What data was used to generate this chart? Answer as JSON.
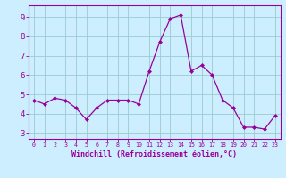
{
  "x": [
    0,
    1,
    2,
    3,
    4,
    5,
    6,
    7,
    8,
    9,
    10,
    11,
    12,
    13,
    14,
    15,
    16,
    17,
    18,
    19,
    20,
    21,
    22,
    23
  ],
  "y": [
    4.7,
    4.5,
    4.8,
    4.7,
    4.3,
    3.7,
    4.3,
    4.7,
    4.7,
    4.7,
    4.5,
    6.2,
    7.7,
    8.9,
    9.1,
    6.2,
    6.5,
    6.0,
    4.7,
    4.3,
    3.3,
    3.3,
    3.2,
    3.9
  ],
  "line_color": "#990099",
  "marker": "D",
  "markersize": 2.0,
  "linewidth": 0.9,
  "bg_color": "#cceeff",
  "grid_color": "#99cccc",
  "xlabel": "Windchill (Refroidissement éolien,°C)",
  "xlabel_color": "#990099",
  "tick_color": "#990099",
  "ylim": [
    2.7,
    9.6
  ],
  "xlim": [
    -0.5,
    23.5
  ],
  "yticks": [
    3,
    4,
    5,
    6,
    7,
    8,
    9
  ],
  "xticks": [
    0,
    1,
    2,
    3,
    4,
    5,
    6,
    7,
    8,
    9,
    10,
    11,
    12,
    13,
    14,
    15,
    16,
    17,
    18,
    19,
    20,
    21,
    22,
    23
  ],
  "xtick_labels": [
    "0",
    "1",
    "2",
    "3",
    "4",
    "5",
    "6",
    "7",
    "8",
    "9",
    "10",
    "11",
    "12",
    "13",
    "14",
    "15",
    "16",
    "17",
    "18",
    "19",
    "20",
    "21",
    "22",
    "23"
  ],
  "spine_color": "#990099",
  "xtick_fontsize": 4.8,
  "ytick_fontsize": 6.5,
  "xlabel_fontsize": 6.0
}
